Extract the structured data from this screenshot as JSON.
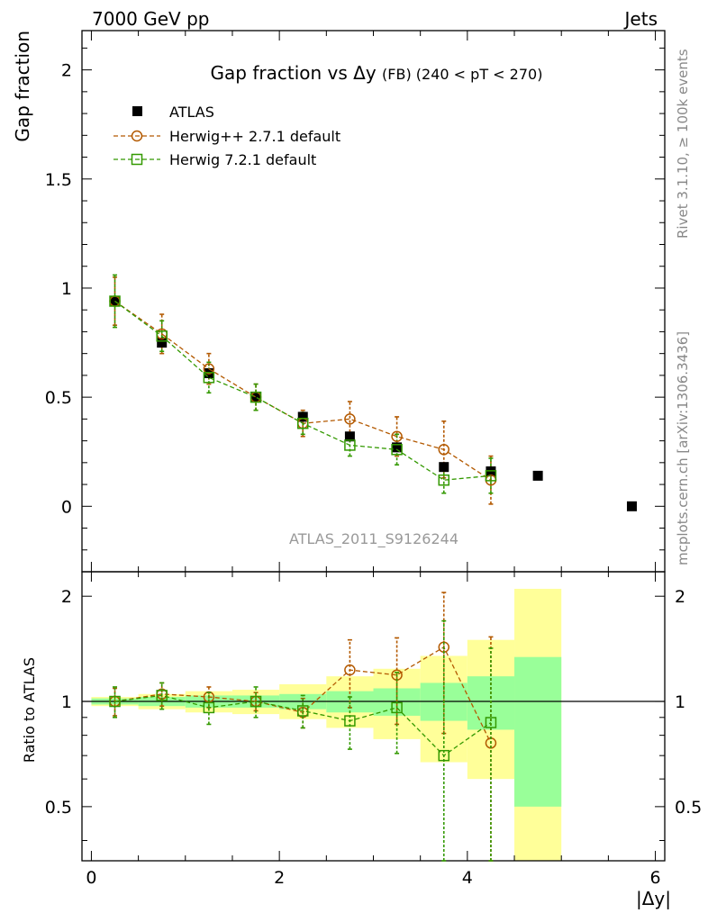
{
  "header": {
    "left": "7000 GeV pp",
    "right": "Jets"
  },
  "side_labels": {
    "top": "Rivet 3.1.10, ≥ 100k events",
    "bottom": "mcplots.cern.ch [arXiv:1306.3436]"
  },
  "watermark": "ATLAS_2011_S9126244",
  "chart_data": [
    {
      "type": "scatter",
      "title_main": "Gap fraction vs",
      "title_delta": "Δy",
      "title_sub": "(FB) (240 < pT < 270)",
      "ylabel": "Gap fraction",
      "xlim": [
        -0.1,
        6.1
      ],
      "ylim": [
        -0.3,
        2.18
      ],
      "yticks": [
        0,
        0.5,
        1,
        1.5,
        2
      ],
      "ytick_labels": [
        "0",
        "0.5",
        "1",
        "1.5",
        "2"
      ],
      "legend_position": "top-left",
      "series": [
        {
          "name": "ATLAS",
          "color": "#000000",
          "marker": "filled-square",
          "x": [
            0.25,
            0.75,
            1.25,
            1.75,
            2.25,
            2.75,
            3.25,
            3.75,
            4.25,
            4.75,
            5.75
          ],
          "y": [
            0.94,
            0.75,
            0.61,
            0.5,
            0.41,
            0.32,
            0.27,
            0.18,
            0.16,
            0.14,
            0.0
          ]
        },
        {
          "name": "Herwig++ 2.7.1 default",
          "color": "#b35900",
          "marker": "open-circle",
          "line": "dashed",
          "x": [
            0.25,
            0.75,
            1.25,
            1.75,
            2.25,
            2.75,
            3.25,
            3.75,
            4.25
          ],
          "y": [
            0.94,
            0.79,
            0.63,
            0.5,
            0.38,
            0.4,
            0.32,
            0.26,
            0.12
          ],
          "yerr": [
            0.11,
            0.09,
            0.07,
            0.06,
            0.06,
            0.08,
            0.09,
            0.13,
            0.11
          ]
        },
        {
          "name": "Herwig 7.2.1 default",
          "color": "#339900",
          "marker": "open-square",
          "line": "dashed",
          "x": [
            0.25,
            0.75,
            1.25,
            1.75,
            2.25,
            2.75,
            3.25,
            3.75,
            4.25
          ],
          "y": [
            0.94,
            0.78,
            0.59,
            0.5,
            0.38,
            0.28,
            0.26,
            0.12,
            0.14
          ],
          "yerr": [
            0.12,
            0.07,
            0.07,
            0.06,
            0.05,
            0.05,
            0.07,
            0.06,
            0.08
          ]
        }
      ]
    },
    {
      "type": "scatter",
      "ylabel": "Ratio to ATLAS",
      "xlabel": "|Δy|",
      "xlim": [
        -0.1,
        6.1
      ],
      "ylim": [
        0.35,
        2.35
      ],
      "yticks": [
        0.5,
        1,
        2
      ],
      "ytick_labels": [
        "0.5",
        "1",
        "2"
      ],
      "xticks": [
        0,
        2,
        4,
        6
      ],
      "xtick_labels": [
        "0",
        "2",
        "4",
        "6"
      ],
      "bands": {
        "x_edges": [
          0.0,
          0.5,
          1.0,
          1.5,
          2.0,
          2.5,
          3.0,
          3.5,
          4.0,
          4.5,
          5.0
        ],
        "green_low": [
          0.98,
          0.97,
          0.96,
          0.96,
          0.95,
          0.93,
          0.91,
          0.88,
          0.83,
          0.5
        ],
        "green_high": [
          1.02,
          1.03,
          1.04,
          1.04,
          1.05,
          1.07,
          1.09,
          1.13,
          1.18,
          1.34
        ],
        "yellow_low": [
          0.97,
          0.95,
          0.93,
          0.92,
          0.89,
          0.84,
          0.78,
          0.67,
          0.6,
          0.3
        ],
        "yellow_high": [
          1.03,
          1.05,
          1.07,
          1.08,
          1.12,
          1.18,
          1.24,
          1.35,
          1.5,
          2.1
        ],
        "yellow_color": "#ffff99",
        "green_color": "#99ff99"
      },
      "series": [
        {
          "name": "Herwig++ 2.7.1 default",
          "color": "#b35900",
          "x": [
            0.25,
            0.75,
            1.25,
            1.75,
            2.25,
            2.75,
            3.25,
            3.75,
            4.25
          ],
          "y": [
            1.0,
            1.05,
            1.03,
            1.0,
            0.93,
            1.23,
            1.19,
            1.43,
            0.76
          ],
          "yerr": [
            0.09,
            0.08,
            0.07,
            0.06,
            0.09,
            0.27,
            0.33,
            0.62,
            0.77
          ]
        },
        {
          "name": "Herwig 7.2.1 default",
          "color": "#339900",
          "x": [
            0.25,
            0.75,
            1.25,
            1.75,
            2.25,
            2.75,
            3.25,
            3.75,
            4.25
          ],
          "y": [
            1.0,
            1.04,
            0.96,
            1.0,
            0.94,
            0.88,
            0.96,
            0.7,
            0.87
          ],
          "yerr": [
            0.1,
            0.09,
            0.1,
            0.1,
            0.1,
            0.15,
            0.25,
            1.0,
            0.55
          ]
        }
      ]
    }
  ]
}
